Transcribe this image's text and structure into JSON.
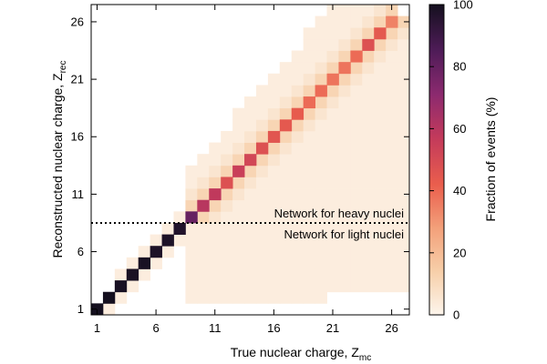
{
  "chart_data": {
    "type": "heatmap",
    "xlabel": "True nuclear charge, Z",
    "xlabel_sub": "mc",
    "ylabel": "Reconstructed nuclear charge, Z",
    "ylabel_sub": "rec",
    "x_ticks": [
      1,
      6,
      11,
      16,
      21,
      26
    ],
    "y_ticks": [
      1,
      6,
      11,
      16,
      21,
      26
    ],
    "xlim": [
      0.5,
      27.5
    ],
    "ylim": [
      0.5,
      27.5
    ],
    "colorbar": {
      "label": "Fraction of events (%)",
      "range": [
        0,
        100
      ],
      "ticks": [
        0,
        20,
        40,
        60,
        80,
        100
      ],
      "colormap": [
        "#fdf5ec",
        "#f7cfa9",
        "#f3a07a",
        "#ea5e4d",
        "#c33a5b",
        "#8c2a6f",
        "#4f1c58",
        "#15101f"
      ]
    },
    "annotations": [
      "Network for heavy nuclei",
      "Network for light nuclei"
    ],
    "separator_z": 8.5,
    "diagonal": [
      {
        "z": 1,
        "value": 100
      },
      {
        "z": 2,
        "value": 100
      },
      {
        "z": 3,
        "value": 99
      },
      {
        "z": 4,
        "value": 99
      },
      {
        "z": 5,
        "value": 99
      },
      {
        "z": 6,
        "value": 98
      },
      {
        "z": 7,
        "value": 98
      },
      {
        "z": 8,
        "value": 97
      },
      {
        "z": 9,
        "value": 80
      },
      {
        "z": 10,
        "value": 60
      },
      {
        "z": 11,
        "value": 58
      },
      {
        "z": 12,
        "value": 48
      },
      {
        "z": 13,
        "value": 55
      },
      {
        "z": 14,
        "value": 52
      },
      {
        "z": 15,
        "value": 48
      },
      {
        "z": 16,
        "value": 46
      },
      {
        "z": 17,
        "value": 45
      },
      {
        "z": 18,
        "value": 44
      },
      {
        "z": 19,
        "value": 40
      },
      {
        "z": 20,
        "value": 40
      },
      {
        "z": 21,
        "value": 38
      },
      {
        "z": 22,
        "value": 38
      },
      {
        "z": 23,
        "value": 40
      },
      {
        "z": 24,
        "value": 48
      },
      {
        "z": 25,
        "value": 45
      },
      {
        "z": 26,
        "value": 35
      }
    ],
    "near_diagonal_pct": 12,
    "background_pct": 3
  }
}
